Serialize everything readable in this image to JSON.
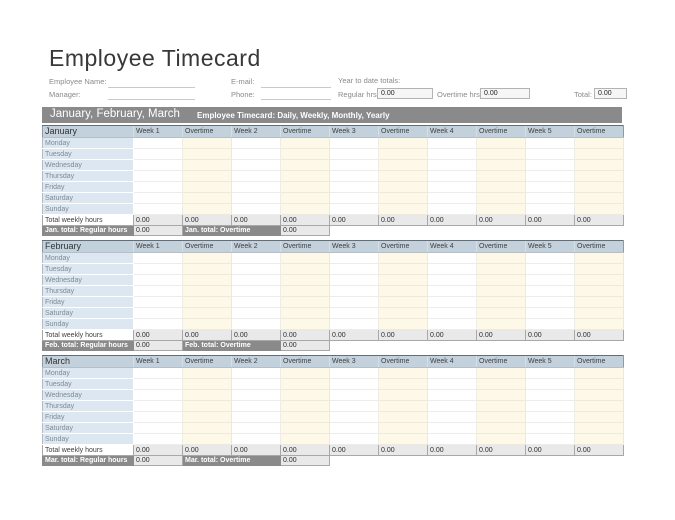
{
  "page": {
    "title": "Employee Timecard"
  },
  "form": {
    "employee_name_label": "Employee Name:",
    "employee_name_value": "",
    "manager_label": "Manager:",
    "manager_value": "",
    "email_label": "E-mail:",
    "email_value": "",
    "phone_label": "Phone:",
    "phone_value": "",
    "ytd_totals_label": "Year to date totals:",
    "regular_hrs_label": "Regular hrs:",
    "regular_hrs_value": "0.00",
    "overtime_hrs_label": "Overtime hrs:",
    "overtime_hrs_value": "0.00",
    "total_label": "Total:",
    "total_value": "0.00"
  },
  "banner": {
    "months_title": "January, February, March",
    "subtitle": "Employee Timecard: Daily, Weekly, Monthly, Yearly"
  },
  "table": {
    "week_headers": [
      "Week 1",
      "Overtime",
      "Week 2",
      "Overtime",
      "Week 3",
      "Overtime",
      "Week 4",
      "Overtime",
      "Week 5",
      "Overtime"
    ],
    "days": [
      "Monday",
      "Tuesday",
      "Wednesday",
      "Thursday",
      "Friday",
      "Saturday",
      "Sunday"
    ],
    "weekly_total_label": "Total weekly hours"
  },
  "months": [
    {
      "name": "January",
      "weekly_totals": [
        "0.00",
        "0.00",
        "0.00",
        "0.00",
        "0.00",
        "0.00",
        "0.00",
        "0.00",
        "0.00",
        "0.00"
      ],
      "monthly_regular_label": "Jan. total: Regular hours",
      "monthly_regular_value": "0.00",
      "monthly_overtime_label": "Jan. total: Overtime",
      "monthly_overtime_value": "0.00"
    },
    {
      "name": "February",
      "weekly_totals": [
        "0.00",
        "0.00",
        "0.00",
        "0.00",
        "0.00",
        "0.00",
        "0.00",
        "0.00",
        "0.00",
        "0.00"
      ],
      "monthly_regular_label": "Feb. total: Regular hours",
      "monthly_regular_value": "0.00",
      "monthly_overtime_label": "Feb. total: Overtime",
      "monthly_overtime_value": "0.00"
    },
    {
      "name": "March",
      "weekly_totals": [
        "0.00",
        "0.00",
        "0.00",
        "0.00",
        "0.00",
        "0.00",
        "0.00",
        "0.00",
        "0.00",
        "0.00"
      ],
      "monthly_regular_label": "Mar. total: Regular hours",
      "monthly_regular_value": "0.00",
      "monthly_overtime_label": "Mar. total: Overtime",
      "monthly_overtime_value": "0.00"
    }
  ],
  "colors": {
    "banner_gray": "#8a8a8a",
    "column_header_blue": "#c3d1dc",
    "day_label_blue": "#dce7f1",
    "overtime_cream": "#fdf8e7",
    "totals_gray": "#e9e9e9",
    "dark_total_row": "#8a8a8a"
  }
}
